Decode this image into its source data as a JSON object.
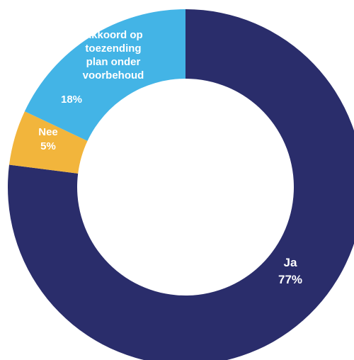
{
  "chart_data": {
    "type": "pie",
    "variant": "donut",
    "title": "",
    "slices": [
      {
        "name": "Ja",
        "value": 77,
        "value_label": "77%",
        "color": "#2a2d6b",
        "label_lines": [
          "Ja"
        ]
      },
      {
        "name": "Nee",
        "value": 5,
        "value_label": "5%",
        "color": "#f2b53c",
        "label_lines": [
          "Nee"
        ]
      },
      {
        "name": "Akkoord op toezending plan onder voorbehoud",
        "value": 18,
        "value_label": "18%",
        "color": "#43b4e6",
        "label_lines": [
          "Akkoord op",
          "toezending",
          "plan onder",
          "voorbehoud"
        ]
      }
    ],
    "start_angle": "12 o'clock",
    "direction": "clockwise",
    "legend": "none"
  }
}
